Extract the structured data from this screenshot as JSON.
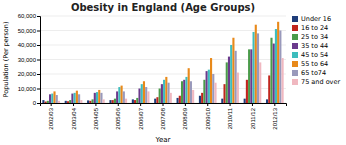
{
  "chart_data": {
    "type": "bar",
    "title": "Obesity in England (Age Groups)",
    "xlabel": "Year",
    "ylabel": "Population (Per person)",
    "categories": [
      "2002/03",
      "2003/04",
      "2004/05",
      "2005/06",
      "2006/07",
      "2007/08",
      "2008/09",
      "2009/10",
      "2010/11",
      "2011/12",
      "2012/13"
    ],
    "series": [
      {
        "name": "Under 16",
        "color": "#1f3d7a",
        "values": [
          2000,
          1500,
          1800,
          2000,
          2500,
          3000,
          3500,
          5000,
          3000,
          3000,
          2500
        ]
      },
      {
        "name": "16 to 24",
        "color": "#c0251d",
        "values": [
          1000,
          1200,
          1500,
          2000,
          2000,
          4000,
          5000,
          7000,
          13000,
          16000,
          19000
        ]
      },
      {
        "name": "25 to 34",
        "color": "#4a9b4a",
        "values": [
          1500,
          2000,
          2500,
          3000,
          3500,
          10000,
          15000,
          16000,
          28000,
          37000,
          45000
        ]
      },
      {
        "name": "35 to 44",
        "color": "#6b3a8c",
        "values": [
          6000,
          6500,
          7000,
          8000,
          10000,
          13000,
          16000,
          22000,
          32000,
          37000,
          41000
        ]
      },
      {
        "name": "45 to 54",
        "color": "#3dbdbd",
        "values": [
          6500,
          7000,
          7500,
          11000,
          13000,
          16000,
          18000,
          23000,
          40000,
          49000,
          51000
        ]
      },
      {
        "name": "55 to 64",
        "color": "#e8891a",
        "values": [
          8000,
          8500,
          9000,
          12000,
          15000,
          18000,
          24000,
          31000,
          45000,
          54000,
          56000
        ]
      },
      {
        "name": "65 to74",
        "color": "#9999bb",
        "values": [
          5500,
          6000,
          7000,
          8000,
          11000,
          14000,
          15000,
          20000,
          36000,
          48000,
          50000
        ]
      },
      {
        "name": "75 and over",
        "color": "#f0b8c0",
        "values": [
          1500,
          2000,
          2500,
          3000,
          8000,
          7000,
          9000,
          14000,
          21000,
          28000,
          31000
        ]
      }
    ],
    "ylim": [
      0,
      60000
    ],
    "yticks": [
      0,
      {
        "value": 10000,
        "label": "10,000"
      },
      {
        "value": 20000,
        "label": "20,000"
      },
      {
        "value": 30000,
        "label": "30,000"
      },
      {
        "value": 40000,
        "label": "40,000"
      },
      {
        "value": 50000,
        "label": "50,000"
      },
      {
        "value": 60000,
        "label": "60,000"
      }
    ],
    "grid": true,
    "legend": "right"
  }
}
